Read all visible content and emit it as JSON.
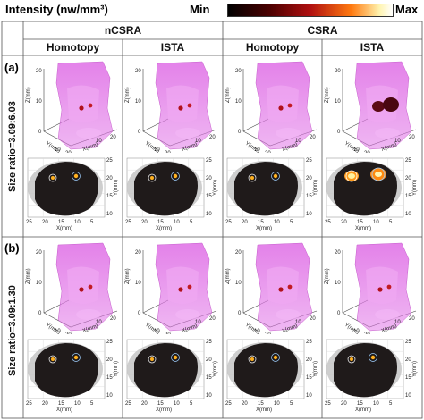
{
  "legend": {
    "title": "Intensity (nw/mm³)",
    "min_label": "Min",
    "max_label": "Max"
  },
  "groups": [
    {
      "label": "nCSRA"
    },
    {
      "label": "CSRA"
    }
  ],
  "columns": [
    {
      "label": "Homotopy"
    },
    {
      "label": "ISTA"
    },
    {
      "label": "Homotopy"
    },
    {
      "label": "ISTA"
    }
  ],
  "rows": [
    {
      "tag": "(a)",
      "ratio": "Size ratio=3.09:6.03"
    },
    {
      "tag": "(b)",
      "ratio": "Size ratio=3.09:1.30"
    }
  ],
  "axes3d": {
    "z_label": "Z(mm)",
    "y_label": "Y(mm)",
    "x_label": "X(mm)",
    "z_ticks": [
      "20",
      "10",
      "0"
    ],
    "y_ticks": [
      "10",
      "20"
    ],
    "x_ticks": [
      "10",
      "20"
    ]
  },
  "axes2d": {
    "x_label": "X(mm)",
    "y_label": "Y(mm)",
    "x_ticks": [
      "25",
      "20",
      "15",
      "10",
      "5"
    ],
    "y_ticks": [
      "25",
      "20",
      "15",
      "10"
    ]
  },
  "colors": {
    "phantom": "#e27be8",
    "slice_bg": "#1f1a1a",
    "ring": "#c9c9c9"
  }
}
